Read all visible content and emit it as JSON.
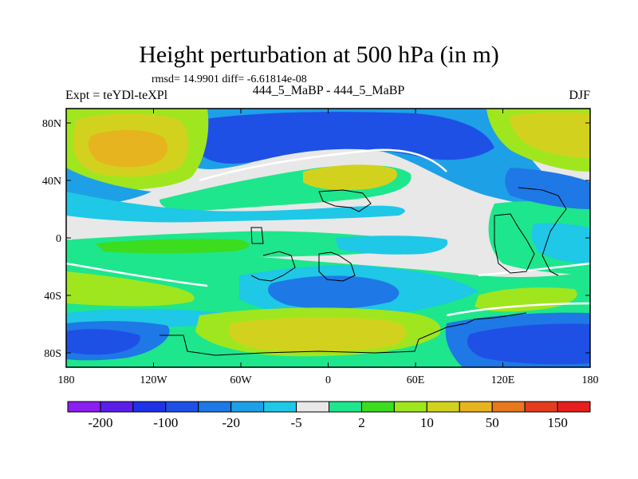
{
  "title": "Height perturbation at 500 hPa (in m)",
  "stats": "rmsd= 14.9901  diff= -6.61814e-08",
  "left_label": "Expt = teYDl-teXPl",
  "center_label": "444_5_MaBP - 444_5_MaBP",
  "right_label": "DJF",
  "map": {
    "lon_range": [
      -180,
      180
    ],
    "lat_range": [
      -90,
      90
    ],
    "x_ticks": [
      {
        "value": -180,
        "label": "180"
      },
      {
        "value": -120,
        "label": "120W"
      },
      {
        "value": -60,
        "label": "60W"
      },
      {
        "value": 0,
        "label": "0"
      },
      {
        "value": 60,
        "label": "60E"
      },
      {
        "value": 120,
        "label": "120E"
      },
      {
        "value": 180,
        "label": "180"
      }
    ],
    "y_ticks": [
      {
        "value": 80,
        "label": "80N"
      },
      {
        "value": 40,
        "label": "40N"
      },
      {
        "value": 0,
        "label": "0"
      },
      {
        "value": -40,
        "label": "40S"
      },
      {
        "value": -80,
        "label": "80S"
      }
    ]
  },
  "colorbar": {
    "colors": [
      "#8b1ef0",
      "#5a1ee8",
      "#1e32e8",
      "#1e50e6",
      "#1e78e6",
      "#1ea0e6",
      "#1ec8e6",
      "#e8e8e8",
      "#1ee68c",
      "#3cdc1e",
      "#a0e61e",
      "#d2d21e",
      "#e6b41e",
      "#e6781e",
      "#e63c1e",
      "#e61e1e"
    ],
    "labels": [
      {
        "boundary": 1,
        "text": "-200"
      },
      {
        "boundary": 3,
        "text": "-100"
      },
      {
        "boundary": 5,
        "text": "-20"
      },
      {
        "boundary": 7,
        "text": "-5"
      },
      {
        "boundary": 9,
        "text": "2"
      },
      {
        "boundary": 11,
        "text": "10"
      },
      {
        "boundary": 13,
        "text": "50"
      },
      {
        "boundary": 15,
        "text": "150"
      }
    ]
  },
  "field_colors": {
    "neutral": "#e8e8e8",
    "light_blue": "#1ec8e6",
    "mid_blue": "#1ea0e6",
    "blue": "#1e78e6",
    "deep_blue": "#1e50e6",
    "green": "#1ee68c",
    "bright_green": "#3cdc1e",
    "yellow_green": "#a0e61e",
    "olive": "#d2d21e",
    "orange": "#e6b41e"
  }
}
